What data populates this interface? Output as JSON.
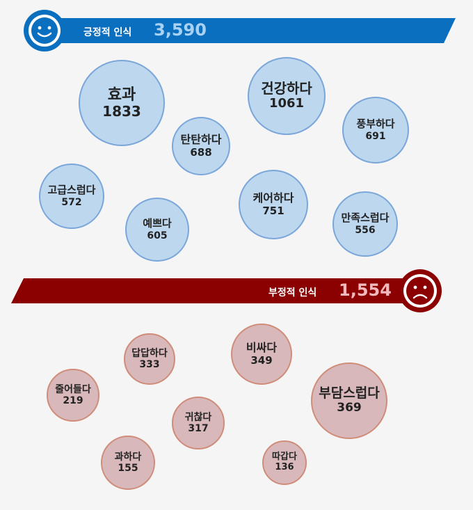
{
  "colors": {
    "positive_banner": "#0b6fc0",
    "positive_total_text": "#a9d2f2",
    "positive_bubble": "#bcd7ee",
    "positive_border": "#7aa6da",
    "negative_banner": "#8b0000",
    "negative_total_text": "#f0b9bd",
    "negative_bubble": "#d9b8bb",
    "negative_border": "#cf8c78"
  },
  "icons": {
    "positive": "smiley-face-icon",
    "negative": "sad-face-icon"
  },
  "chart_data": [
    {
      "type": "bubble",
      "group_label": "긍정적 인식",
      "total": "3,590",
      "items": [
        {
          "word": "효과",
          "value": 1833
        },
        {
          "word": "건강하다",
          "value": 1061
        },
        {
          "word": "탄탄하다",
          "value": 688
        },
        {
          "word": "풍부하다",
          "value": 691
        },
        {
          "word": "고급스럽다",
          "value": 572
        },
        {
          "word": "케어하다",
          "value": 751
        },
        {
          "word": "예쁘다",
          "value": 605
        },
        {
          "word": "만족스럽다",
          "value": 556
        }
      ]
    },
    {
      "type": "bubble",
      "group_label": "부정적 인식",
      "total": "1,554",
      "items": [
        {
          "word": "답답하다",
          "value": 333
        },
        {
          "word": "비싸다",
          "value": 349
        },
        {
          "word": "줄어들다",
          "value": 219
        },
        {
          "word": "부담스럽다",
          "value": 369
        },
        {
          "word": "귀찮다",
          "value": 317
        },
        {
          "word": "과하다",
          "value": 155
        },
        {
          "word": "따갑다",
          "value": 136
        }
      ]
    }
  ]
}
